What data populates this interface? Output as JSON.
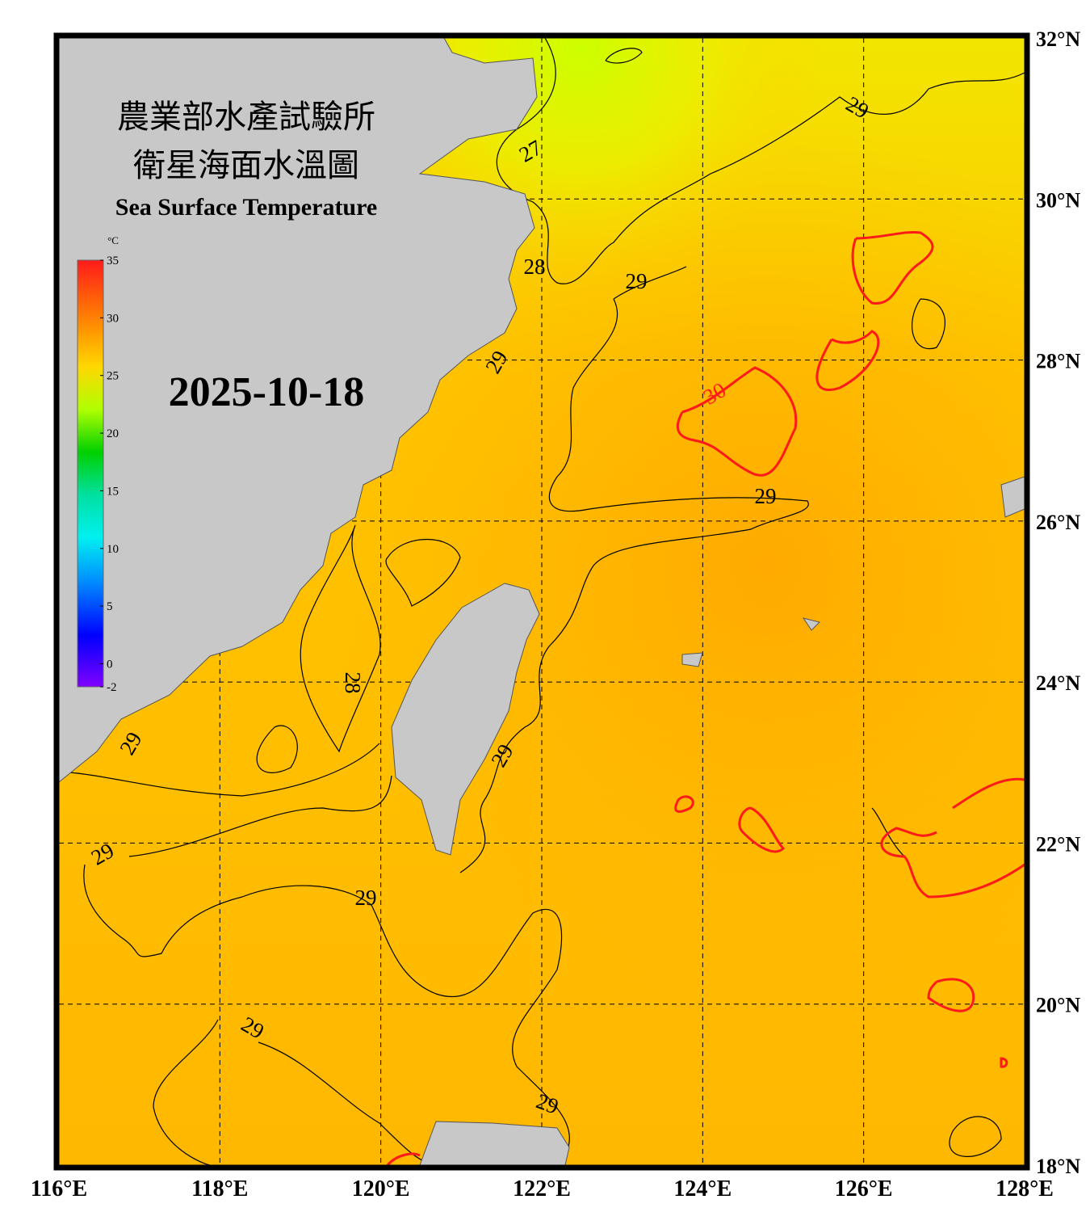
{
  "title_zh_1": "農業部水產試驗所",
  "title_zh_2": "衛星海面水溫圖",
  "title_en": "Sea Surface Temperature",
  "date": "2025-10-18",
  "colorbar": {
    "unit": "°C",
    "range": [
      -2,
      35
    ],
    "ticks": [
      35,
      30,
      25,
      20,
      15,
      10,
      5,
      0,
      -2
    ]
  },
  "map": {
    "lon_range": [
      116,
      128
    ],
    "lat_range": [
      18,
      32
    ],
    "lon_ticks": [
      {
        "value": 116,
        "label": "116°E"
      },
      {
        "value": 118,
        "label": "118°E"
      },
      {
        "value": 120,
        "label": "120°E"
      },
      {
        "value": 122,
        "label": "122°E"
      },
      {
        "value": 124,
        "label": "124°E"
      },
      {
        "value": 126,
        "label": "126°E"
      },
      {
        "value": 128,
        "label": "128°E"
      }
    ],
    "lat_ticks": [
      {
        "value": 32,
        "label": "32°N"
      },
      {
        "value": 30,
        "label": "30°N"
      },
      {
        "value": 28,
        "label": "28°N"
      },
      {
        "value": 26,
        "label": "26°N"
      },
      {
        "value": 24,
        "label": "24°N"
      },
      {
        "value": 22,
        "label": "22°N"
      },
      {
        "value": 20,
        "label": "20°N"
      },
      {
        "value": 18,
        "label": "18°N"
      }
    ],
    "contour_labels": [
      29,
      27,
      28,
      29,
      29,
      30,
      29,
      28,
      29,
      29,
      29,
      29,
      29,
      29
    ]
  }
}
